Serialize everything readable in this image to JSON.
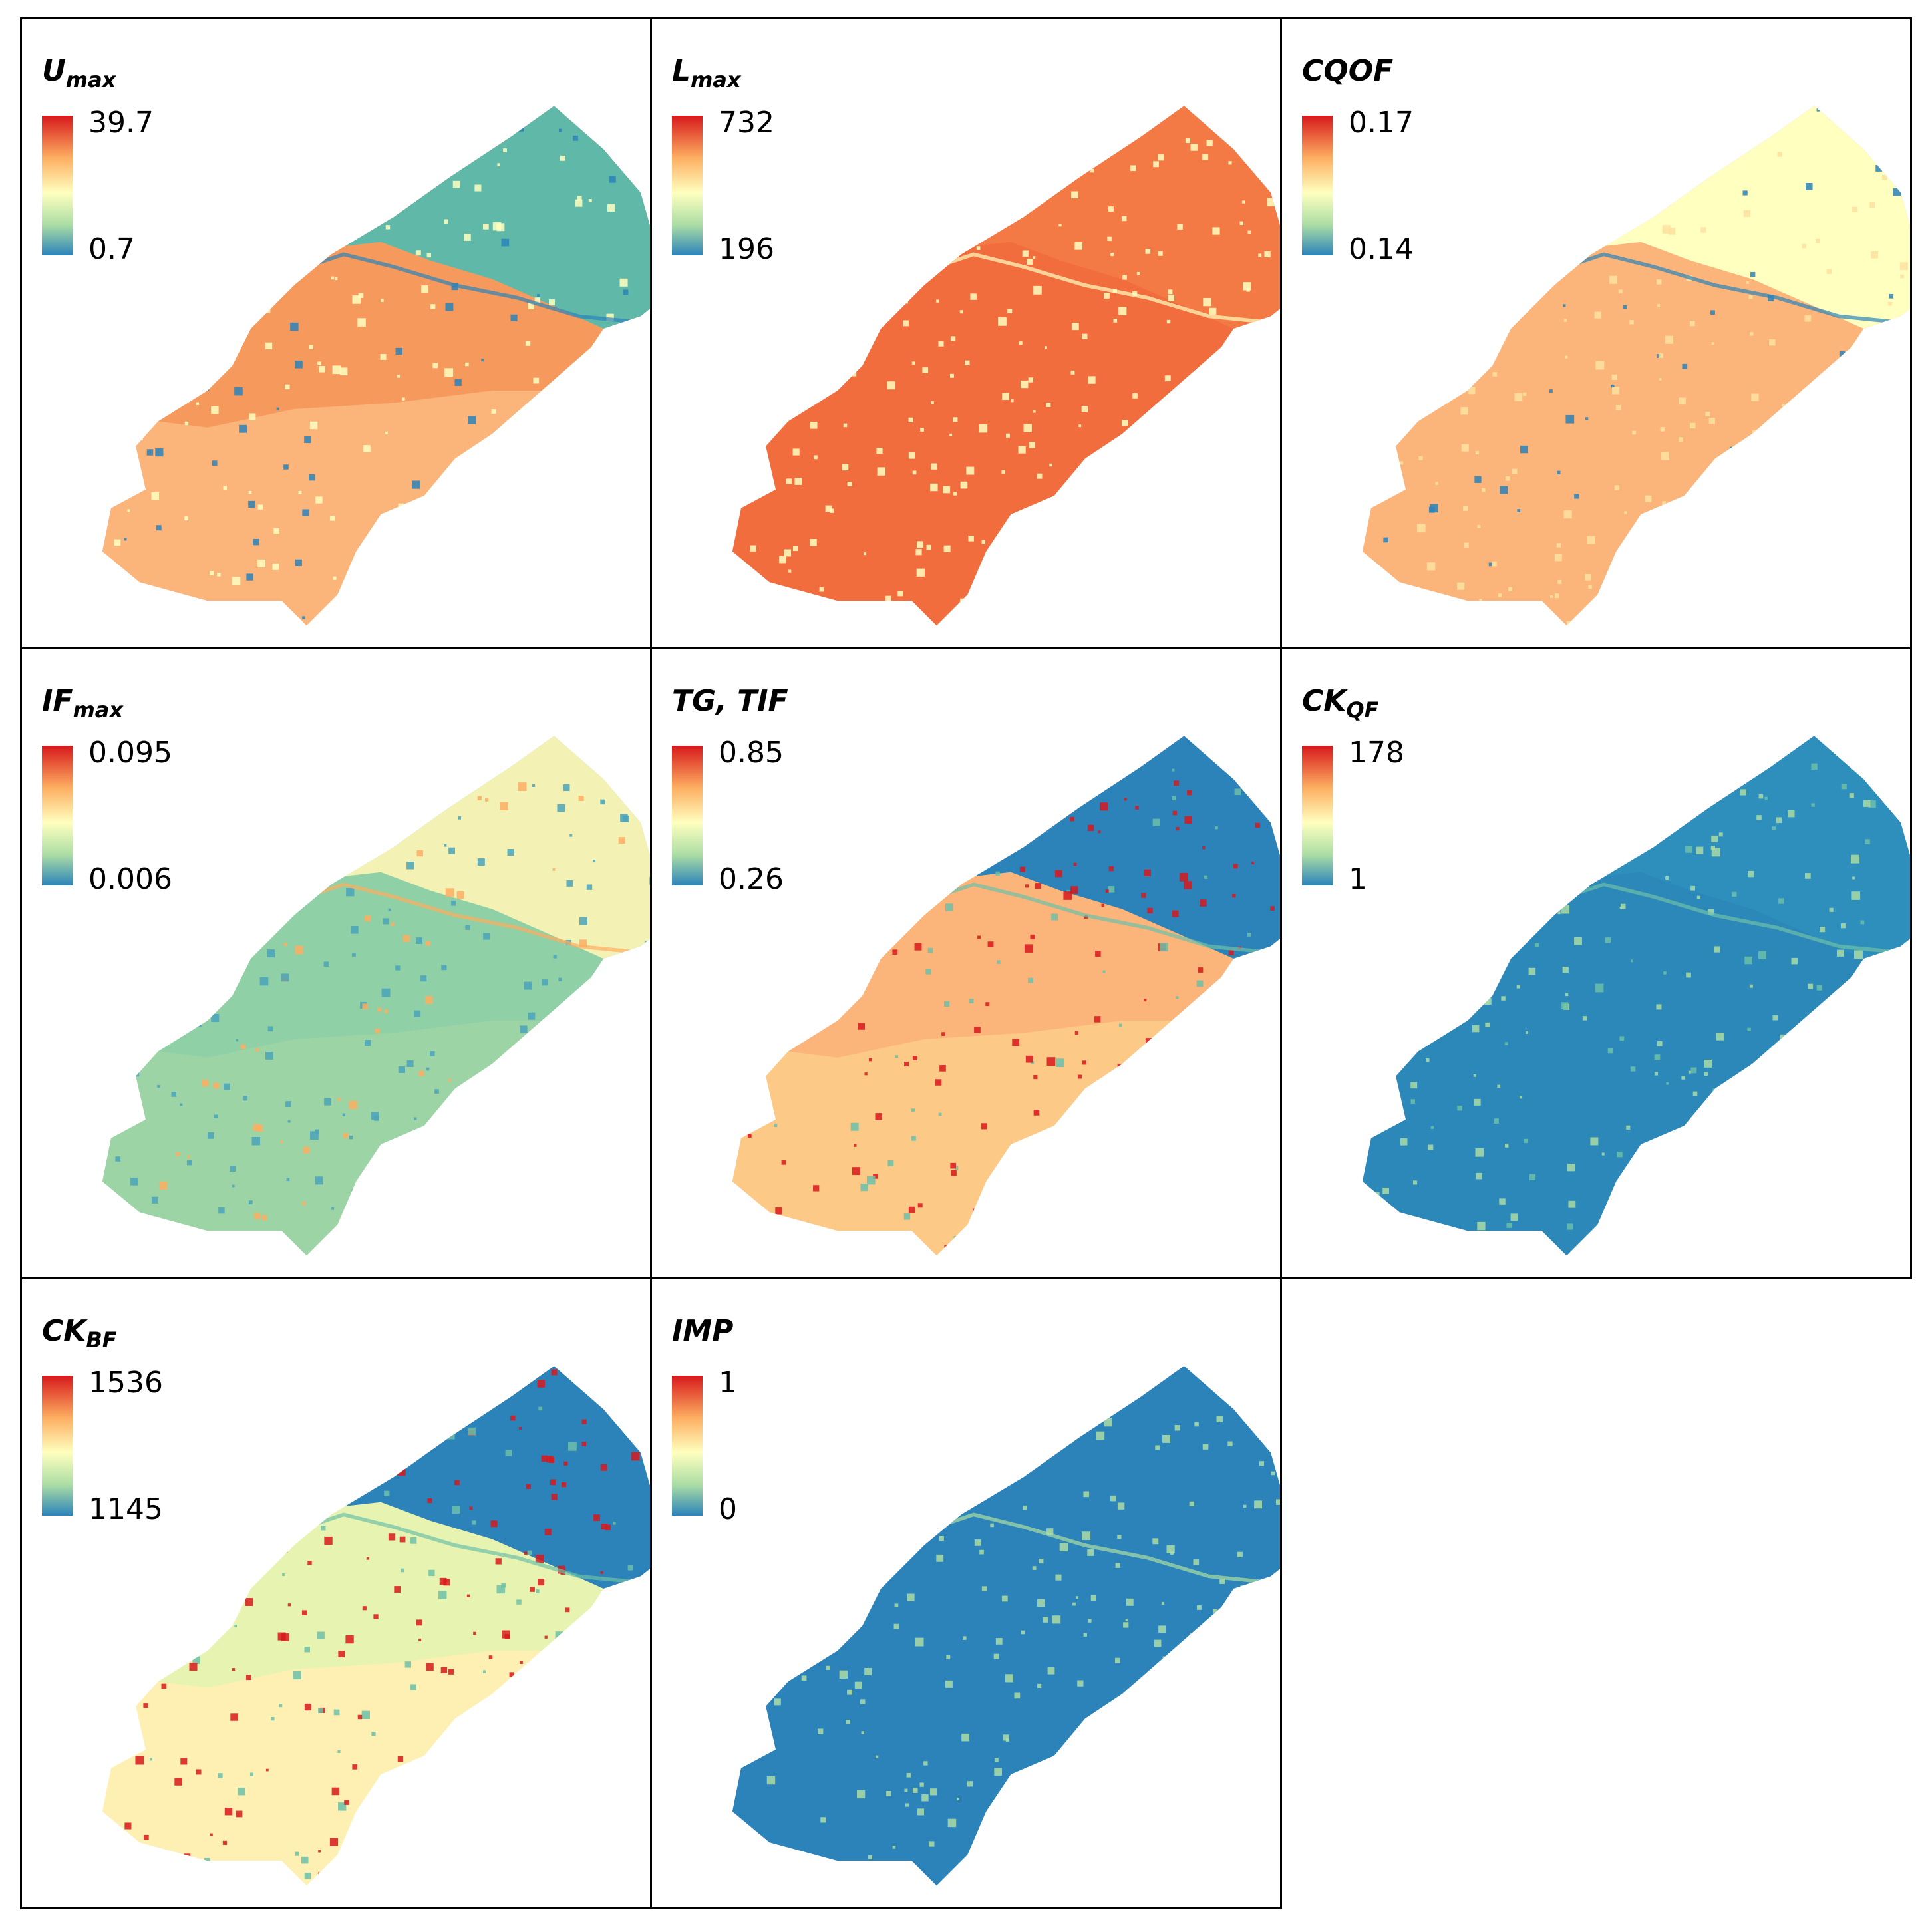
{
  "figure": {
    "panels": [
      {
        "id": "umax",
        "title_main": "U",
        "title_sub": "max",
        "legend_max": "39.7",
        "legend_min": "0.7",
        "colors": {
          "north": "#5fb8a8",
          "north_dark": "#2b83ba",
          "middle": "#f59a5c",
          "south": "#fbb47a",
          "speckle": "#ffffbf"
        }
      },
      {
        "id": "lmax",
        "title_main": "L",
        "title_sub": "max",
        "legend_max": "732",
        "legend_min": "196",
        "colors": {
          "north": "#f47a45",
          "north_dark": "#ffffbf",
          "middle": "#f26d3d",
          "south": "#f26d3d",
          "speckle": "#ffffbf"
        }
      },
      {
        "id": "cqof",
        "title_main": "CQOF",
        "title_sub": "",
        "legend_max": "0.17",
        "legend_min": "0.14",
        "colors": {
          "north": "#ffffbf",
          "north_dark": "#2b83ba",
          "middle": "#fbb47a",
          "south": "#fbb47a",
          "speckle": "#fde2a0"
        }
      },
      {
        "id": "ifmax",
        "title_main": "IF",
        "title_sub": "max",
        "legend_max": "0.095",
        "legend_min": "0.006",
        "colors": {
          "north": "#f3f2b4",
          "north_dark": "#fdae61",
          "middle": "#8fd0a6",
          "south": "#9cd4a6",
          "speckle": "#4aa3b8"
        }
      },
      {
        "id": "tgtif",
        "title_main": "TG,  TIF",
        "title_sub": "",
        "legend_max": "0.85",
        "legend_min": "0.26",
        "colors": {
          "north": "#2b83ba",
          "north_dark": "#6cc0a8",
          "middle": "#fbb47a",
          "south": "#fdc987",
          "speckle": "#d7191c"
        }
      },
      {
        "id": "ckqf",
        "title_main": "CK",
        "title_sub": "QF",
        "legend_max": "178",
        "legend_min": "1",
        "colors": {
          "north": "#2f8fbc",
          "north_dark": "#6cc0a8",
          "middle": "#2b88b8",
          "south": "#2b88b8",
          "speckle": "#a9dca5"
        }
      },
      {
        "id": "ckbf",
        "title_main": "CK",
        "title_sub": "BF",
        "legend_max": "1536",
        "legend_min": "1145",
        "colors": {
          "north": "#2b83ba",
          "north_dark": "#6cc0a8",
          "middle": "#e7f3b0",
          "south": "#fdf0b2",
          "speckle": "#d7191c"
        }
      },
      {
        "id": "imp",
        "title_main": "IMP",
        "title_sub": "",
        "legend_max": "1",
        "legend_min": "0",
        "colors": {
          "north": "#2b83ba",
          "north_dark": "#abdda4",
          "middle": "#2b83ba",
          "south": "#2b83ba",
          "speckle": "#abdda4"
        }
      }
    ]
  }
}
